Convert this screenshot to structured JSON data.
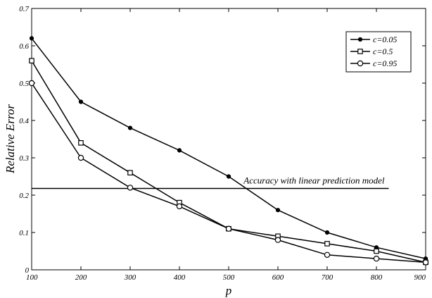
{
  "chart_data": {
    "type": "line",
    "title": "",
    "xlabel": "p",
    "ylabel": "Relative Error",
    "xlim": [
      100,
      900
    ],
    "ylim": [
      0,
      0.7
    ],
    "x_ticks": [
      "100",
      "200",
      "300",
      "400",
      "500",
      "600",
      "700",
      "800",
      "900"
    ],
    "y_ticks": [
      "0",
      "0.1",
      "0.2",
      "0.3",
      "0.4",
      "0.5",
      "0.6",
      "0.7"
    ],
    "grid": false,
    "legend_position": "top-right",
    "x": [
      100,
      200,
      300,
      400,
      500,
      600,
      700,
      800,
      900
    ],
    "series": [
      {
        "name": "c=0.05",
        "marker": "filled-circle",
        "values": [
          0.62,
          0.45,
          0.38,
          0.32,
          0.25,
          0.16,
          0.1,
          0.06,
          0.03
        ]
      },
      {
        "name": "c=0.5",
        "marker": "square",
        "values": [
          0.56,
          0.34,
          0.26,
          0.18,
          0.11,
          0.09,
          0.07,
          0.05,
          0.02
        ]
      },
      {
        "name": "c=0.95",
        "marker": "open-circle",
        "values": [
          0.5,
          0.3,
          0.22,
          0.17,
          0.11,
          0.08,
          0.04,
          0.03,
          0.02
        ]
      }
    ],
    "reference_line": {
      "label": "Accuracy with linear prediction model",
      "y": 0.218,
      "x_range": [
        100,
        825
      ]
    }
  }
}
